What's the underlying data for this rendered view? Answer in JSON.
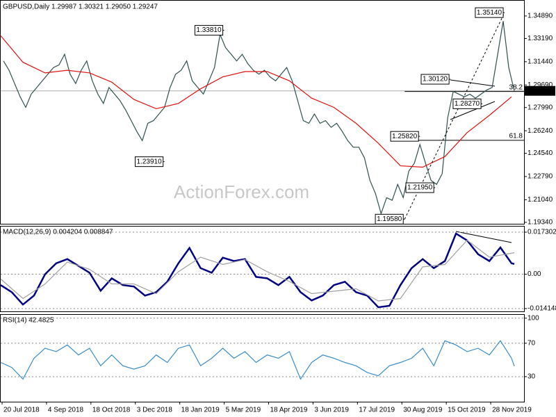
{
  "watermark": "ActionForex.com",
  "chart_data": [
    {
      "type": "line",
      "title": "GBPUSD,Daily  1.29987 1.30321 1.29050 1.29247",
      "xlim": [
        0,
        377
      ],
      "ylim": [
        1.1923,
        1.3604
      ],
      "yticks": [
        {
          "value": 1.3489,
          "label": "1.34890"
        },
        {
          "value": 1.3319,
          "label": "1.33190"
        },
        {
          "value": 1.3144,
          "label": "1.31440"
        },
        {
          "value": 1.2969,
          "label": "1.29690"
        },
        {
          "value": 1.2799,
          "label": "1.27990"
        },
        {
          "value": 1.2624,
          "label": "1.26240"
        },
        {
          "value": 1.2454,
          "label": "1.24540"
        },
        {
          "value": 1.2279,
          "label": "1.22790"
        },
        {
          "value": 1.2104,
          "label": "1.21040"
        },
        {
          "value": 1.1934,
          "label": "1.19340"
        }
      ],
      "last_price": {
        "value": 1.29247,
        "label": "1.29247"
      },
      "fib_levels": [
        {
          "value": 1.292,
          "label": "38.2"
        },
        {
          "value": 1.2552,
          "label": "61.8"
        }
      ],
      "annotations": [
        {
          "x": 161,
          "value": 1.3381,
          "label": "1.33810"
        },
        {
          "x": 118,
          "value": 1.2391,
          "label": "1.23910"
        },
        {
          "x": 363,
          "value": 1.3514,
          "label": "1.35140"
        },
        {
          "x": 324,
          "value": 1.3012,
          "label": "1.30120"
        },
        {
          "x": 347,
          "value": 1.2827,
          "label": "1.28270"
        },
        {
          "x": 302,
          "value": 1.2582,
          "label": "1.25820"
        },
        {
          "x": 313,
          "value": 1.2195,
          "label": "1.21950"
        },
        {
          "x": 291,
          "value": 1.1958,
          "label": "1.19580"
        }
      ],
      "series": [
        {
          "name": "GBPUSD",
          "color": "#2f4f4f",
          "x": [
            2,
            6,
            10,
            14,
            18,
            22,
            26,
            30,
            34,
            38,
            42,
            46,
            50,
            54,
            58,
            62,
            66,
            70,
            74,
            78,
            82,
            86,
            90,
            94,
            98,
            102,
            106,
            110,
            114,
            118,
            122,
            126,
            130,
            134,
            138,
            142,
            146,
            150,
            154,
            158,
            162,
            166,
            170,
            174,
            178,
            182,
            186,
            190,
            194,
            198,
            202,
            206,
            210,
            214,
            218,
            222,
            226,
            230,
            234,
            238,
            242,
            246,
            250,
            254,
            258,
            262,
            266,
            270,
            274,
            278,
            282,
            286,
            290,
            294,
            298,
            302,
            306,
            310,
            314,
            318,
            322,
            326,
            330,
            334,
            338,
            342,
            346,
            350,
            354,
            358,
            362,
            366,
            370
          ],
          "values": [
            1.315,
            1.308,
            1.298,
            1.288,
            1.28,
            1.29,
            1.295,
            1.3,
            1.305,
            1.31,
            1.312,
            1.32,
            1.305,
            1.298,
            1.308,
            1.315,
            1.3,
            1.29,
            1.283,
            1.295,
            1.29,
            1.285,
            1.278,
            1.27,
            1.262,
            1.255,
            1.268,
            1.27,
            1.275,
            1.28,
            1.295,
            1.305,
            1.308,
            1.315,
            1.3,
            1.295,
            1.29,
            1.3,
            1.31,
            1.335,
            1.325,
            1.32,
            1.315,
            1.32,
            1.313,
            1.308,
            1.305,
            1.308,
            1.303,
            1.3,
            1.305,
            1.31,
            1.3,
            1.285,
            1.27,
            1.268,
            1.275,
            1.268,
            1.27,
            1.265,
            1.268,
            1.262,
            1.255,
            1.25,
            1.25,
            1.242,
            1.225,
            1.215,
            1.2,
            1.212,
            1.21,
            1.222,
            1.212,
            1.232,
            1.238,
            1.252,
            1.238,
            1.225,
            1.222,
            1.23,
            1.272,
            1.292,
            1.29,
            1.288,
            1.29,
            1.287,
            1.29,
            1.293,
            1.295,
            1.32,
            1.345,
            1.31,
            1.29247
          ]
        },
        {
          "name": "MA",
          "color": "#e01010",
          "x": [
            0,
            16,
            32,
            48,
            64,
            80,
            96,
            112,
            128,
            144,
            160,
            176,
            192,
            208,
            224,
            240,
            256,
            272,
            288,
            304,
            320,
            336,
            352,
            368
          ],
          "values": [
            1.334,
            1.314,
            1.306,
            1.308,
            1.306,
            1.299,
            1.286,
            1.279,
            1.283,
            1.294,
            1.303,
            1.307,
            1.307,
            1.3,
            1.287,
            1.28,
            1.268,
            1.253,
            1.236,
            1.235,
            1.243,
            1.261,
            1.274,
            1.288
          ]
        }
      ]
    },
    {
      "type": "line",
      "title": "MACD(12,26,9) 0.004204 0.008847",
      "xlim": [
        0,
        377
      ],
      "ylim": [
        -0.0153,
        0.0196
      ],
      "yticks": [
        0.017302,
        {
          "value": 0,
          "label": "0.00"
        },
        -0.014148
      ],
      "x": [
        0,
        8,
        16,
        24,
        32,
        40,
        48,
        56,
        64,
        72,
        80,
        88,
        96,
        104,
        112,
        120,
        128,
        136,
        144,
        152,
        160,
        168,
        176,
        184,
        192,
        200,
        208,
        216,
        224,
        232,
        240,
        248,
        256,
        264,
        272,
        280,
        288,
        296,
        304,
        312,
        320,
        328,
        336,
        344,
        352,
        360,
        368,
        370
      ],
      "series": [
        {
          "name": "MACD",
          "color": "#000080",
          "values": [
            -0.0045,
            -0.0074,
            -0.0125,
            -0.0088,
            0,
            0.0045,
            0.0062,
            0.0034,
            0.0006,
            -0.0068,
            -0.0017,
            -0.0045,
            -0.0051,
            -0.0088,
            -0.0074,
            -0.0031,
            0.0045,
            0.0108,
            0.0025,
            0.0006,
            0.0068,
            0.0054,
            0.0062,
            -0.0011,
            -0.0017,
            -0.0045,
            -0.0011,
            -0.0074,
            -0.0108,
            -0.0088,
            -0.0045,
            -0.0031,
            -0.0074,
            -0.0088,
            -0.0136,
            -0.013,
            -0.0045,
            0.0025,
            0.0062,
            0.0025,
            0.0054,
            0.0167,
            0.0139,
            0.0082,
            0.0054,
            0.011,
            0.0045,
            0.004204
          ]
        },
        {
          "name": "Signal",
          "color": "#a0a0a0",
          "x": [
            0,
            16,
            32,
            48,
            64,
            80,
            96,
            112,
            128,
            144,
            160,
            176,
            192,
            208,
            224,
            240,
            256,
            272,
            288,
            304,
            320,
            336,
            352,
            370
          ],
          "values": [
            -0.002,
            -0.01,
            -0.004,
            0.005,
            0.002,
            -0.004,
            -0.004,
            -0.008,
            0.001,
            0.007,
            0.004,
            0.006,
            0.001,
            -0.003,
            -0.008,
            -0.007,
            -0.006,
            -0.011,
            -0.01,
            0.003,
            0.004,
            0.014,
            0.007,
            0.008847
          ]
        }
      ]
    },
    {
      "type": "line",
      "title": "RSI(14) 42.4825",
      "xlim": [
        0,
        377
      ],
      "ylim": [
        0,
        104
      ],
      "yticks": [
        100,
        70,
        30
      ],
      "x": [
        0,
        8,
        16,
        24,
        32,
        40,
        48,
        56,
        64,
        72,
        80,
        88,
        96,
        104,
        112,
        120,
        128,
        136,
        144,
        152,
        160,
        168,
        176,
        184,
        192,
        200,
        208,
        216,
        224,
        232,
        240,
        248,
        256,
        264,
        272,
        280,
        288,
        296,
        304,
        312,
        320,
        328,
        336,
        344,
        352,
        360,
        368,
        370
      ],
      "xticks": [
        {
          "value": 1,
          "label": "20 Jul 2018"
        },
        {
          "value": 33,
          "label": "4 Sep 2018"
        },
        {
          "value": 65,
          "label": "18 Oct 2018"
        },
        {
          "value": 97,
          "label": "3 Dec 2018"
        },
        {
          "value": 129,
          "label": "18 Jan 2019"
        },
        {
          "value": 161,
          "label": "5 Mar 2019"
        },
        {
          "value": 193,
          "label": "18 Apr 2019"
        },
        {
          "value": 225,
          "label": "3 Jun 2019"
        },
        {
          "value": 257,
          "label": "17 Jul 2019"
        },
        {
          "value": 289,
          "label": "30 Aug 2019"
        },
        {
          "value": 321,
          "label": "15 Oct 2019"
        },
        {
          "value": 353,
          "label": "28 Nov 2019"
        }
      ],
      "series": [
        {
          "name": "RSI",
          "color": "#3a8cc6",
          "values": [
            47,
            41,
            27,
            52,
            64,
            60,
            68,
            56,
            64,
            43,
            56,
            43,
            39,
            43,
            56,
            47,
            64,
            68,
            43,
            52,
            64,
            52,
            60,
            47,
            56,
            52,
            60,
            27,
            47,
            56,
            52,
            47,
            43,
            35,
            31,
            43,
            47,
            52,
            64,
            43,
            73,
            68,
            60,
            64,
            56,
            73,
            52,
            42.4825
          ]
        }
      ]
    }
  ]
}
